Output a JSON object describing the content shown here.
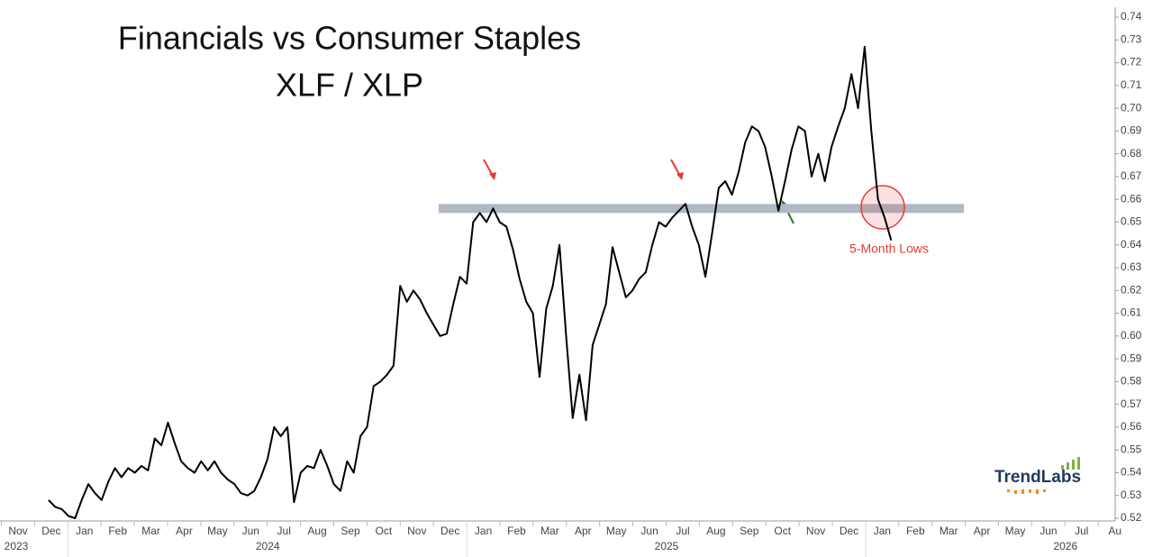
{
  "chart_data": {
    "type": "line",
    "title": "Financials vs Consumer Staples",
    "subtitle": "XLF / XLP",
    "annotation": "5-Month Lows",
    "logo": "TrendLabs",
    "resistance_level": 0.656,
    "months": [
      "Nov",
      "Dec",
      "Jan",
      "Feb",
      "Mar",
      "Apr",
      "May",
      "Jun",
      "Jul",
      "Aug",
      "Sep",
      "Oct",
      "Nov",
      "Dec",
      "Jan",
      "Feb",
      "Mar",
      "Apr",
      "May",
      "Jun",
      "Jul",
      "Aug",
      "Sep",
      "Oct",
      "Nov",
      "Dec",
      "Jan",
      "Feb",
      "Mar",
      "Apr",
      "May",
      "Jun",
      "Jul",
      "Au"
    ],
    "years": [
      "2023",
      "2024",
      "2025",
      "2026"
    ],
    "ylim": [
      0.52,
      0.74
    ],
    "yticks": [
      0.52,
      0.53,
      0.54,
      0.55,
      0.56,
      0.57,
      0.58,
      0.59,
      {
        "value": 0.6,
        "label": "0.60"
      },
      0.61,
      0.62,
      0.63,
      0.64,
      0.65,
      0.66,
      0.67,
      0.68,
      0.69,
      {
        "value": 0.7,
        "label": "0.70"
      },
      0.71,
      0.72,
      0.73,
      0.74
    ],
    "series": [
      {
        "name": "XLF / XLP",
        "color": "#000000",
        "values": [
          0.528,
          0.525,
          0.524,
          0.521,
          0.52,
          0.528,
          0.535,
          0.531,
          0.528,
          0.536,
          0.542,
          0.538,
          0.542,
          0.54,
          0.543,
          0.541,
          0.555,
          0.552,
          0.562,
          0.553,
          0.545,
          0.542,
          0.54,
          0.545,
          0.541,
          0.545,
          0.54,
          0.537,
          0.535,
          0.531,
          0.53,
          0.532,
          0.538,
          0.546,
          0.56,
          0.556,
          0.56,
          0.527,
          0.54,
          0.543,
          0.542,
          0.55,
          0.543,
          0.535,
          0.532,
          0.545,
          0.54,
          0.556,
          0.56,
          0.578,
          0.58,
          0.583,
          0.587,
          0.622,
          0.615,
          0.62,
          0.616,
          0.61,
          0.605,
          0.6,
          0.601,
          0.614,
          0.626,
          0.623,
          0.65,
          0.654,
          0.65,
          0.656,
          0.65,
          0.648,
          0.638,
          0.625,
          0.615,
          0.61,
          0.582,
          0.612,
          0.622,
          0.64,
          0.6,
          0.564,
          0.583,
          0.563,
          0.596,
          0.605,
          0.614,
          0.639,
          0.628,
          0.617,
          0.62,
          0.625,
          0.628,
          0.64,
          0.65,
          0.648,
          0.652,
          0.655,
          0.658,
          0.648,
          0.64,
          0.626,
          0.645,
          0.665,
          0.668,
          0.662,
          0.672,
          0.685,
          0.692,
          0.69,
          0.683,
          0.67,
          0.655,
          0.668,
          0.682,
          0.692,
          0.69,
          0.67,
          0.68,
          0.668,
          0.683,
          0.692,
          0.7,
          0.715,
          0.7,
          0.727,
          0.69,
          0.66,
          0.652,
          0.642
        ]
      }
    ]
  }
}
